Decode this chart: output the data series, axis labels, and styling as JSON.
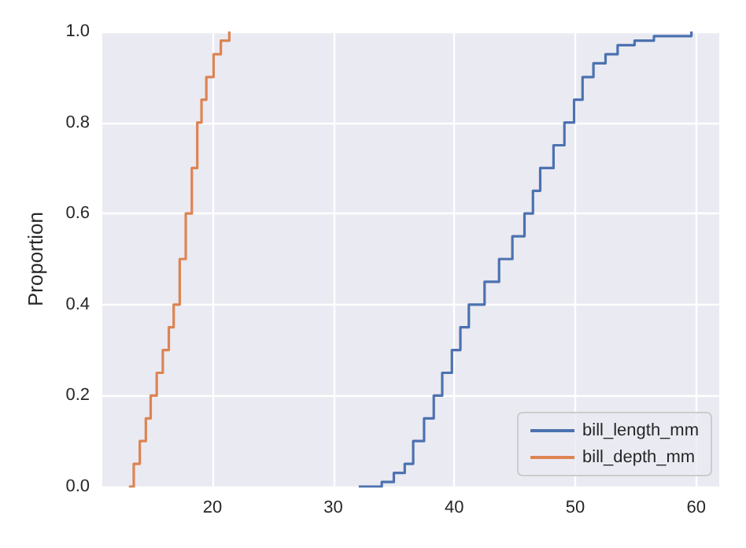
{
  "chart_data": {
    "type": "step",
    "ylabel": "Proportion",
    "series": [
      {
        "name": "bill_length_mm",
        "color": "#4c72b0",
        "x": [
          32.1,
          34.0,
          35.0,
          35.9,
          36.6,
          37.5,
          38.3,
          39.0,
          39.8,
          40.5,
          41.2,
          42.5,
          43.7,
          44.8,
          45.8,
          46.5,
          47.1,
          48.2,
          49.1,
          49.9,
          50.6,
          51.5,
          52.5,
          53.5,
          54.9,
          56.5,
          59.6
        ],
        "values": [
          0.0,
          0.01,
          0.03,
          0.05,
          0.1,
          0.15,
          0.2,
          0.25,
          0.3,
          0.35,
          0.4,
          0.45,
          0.5,
          0.55,
          0.6,
          0.65,
          0.7,
          0.75,
          0.8,
          0.85,
          0.9,
          0.93,
          0.95,
          0.97,
          0.98,
          0.99,
          1.0
        ]
      },
      {
        "name": "bill_depth_mm",
        "color": "#dd8452",
        "x": [
          13.1,
          13.5,
          14.0,
          14.5,
          14.9,
          15.4,
          15.9,
          16.4,
          16.8,
          17.3,
          17.8,
          18.3,
          18.75,
          19.1,
          19.5,
          20.1,
          20.7,
          21.4
        ],
        "values": [
          0.0,
          0.05,
          0.1,
          0.15,
          0.2,
          0.25,
          0.3,
          0.35,
          0.4,
          0.5,
          0.6,
          0.7,
          0.8,
          0.85,
          0.9,
          0.95,
          0.98,
          1.0
        ]
      }
    ],
    "xlim": [
      10.9,
      61.9
    ],
    "xticks": [
      20,
      30,
      40,
      50,
      60
    ],
    "ylim": [
      0,
      1
    ],
    "yticks": [
      {
        "value": 0,
        "label": "0.0"
      },
      0.2,
      0.4,
      0.6,
      0.8,
      {
        "value": 1,
        "label": "1.0"
      }
    ],
    "grid": true,
    "legend": "bottom right"
  }
}
